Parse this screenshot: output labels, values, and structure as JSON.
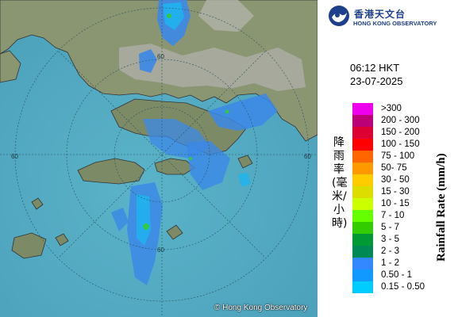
{
  "header": {
    "org_name_zh": "香港天文台",
    "org_name_en": "HONG KONG OBSERVATORY"
  },
  "timestamp": {
    "time": "06:12 HKT",
    "date": "23-07-2025"
  },
  "legend": {
    "title_en": "Rainfall Rate (mm/h)",
    "title_zh": "降雨率(毫米/小時)",
    "bins": [
      {
        "label": ">300",
        "color": "#ee00ee"
      },
      {
        "label": "200 - 300",
        "color": "#bb0077"
      },
      {
        "label": "150 - 200",
        "color": "#dd0033"
      },
      {
        "label": "100 - 150",
        "color": "#ff0000"
      },
      {
        "label": "75 - 100",
        "color": "#ff6600"
      },
      {
        "label": "50- 75",
        "color": "#ff9900"
      },
      {
        "label": "30 - 50",
        "color": "#ffcc00"
      },
      {
        "label": "15 - 30",
        "color": "#dddd00"
      },
      {
        "label": "10 - 15",
        "color": "#ccff00"
      },
      {
        "label": "7 - 10",
        "color": "#66ff00"
      },
      {
        "label": "5 - 7",
        "color": "#33cc00"
      },
      {
        "label": "3 - 5",
        "color": "#009933"
      },
      {
        "label": "2 - 3",
        "color": "#008855"
      },
      {
        "label": "1 - 2",
        "color": "#3388ff"
      },
      {
        "label": "0.50 - 1",
        "color": "#1199ff"
      },
      {
        "label": "0.15 - 0.50",
        "color": "#00ccff"
      }
    ]
  },
  "map": {
    "range_ring_labels": [
      "60",
      "60",
      "60",
      "60"
    ],
    "credit": "© Hong Kong Observatory"
  }
}
